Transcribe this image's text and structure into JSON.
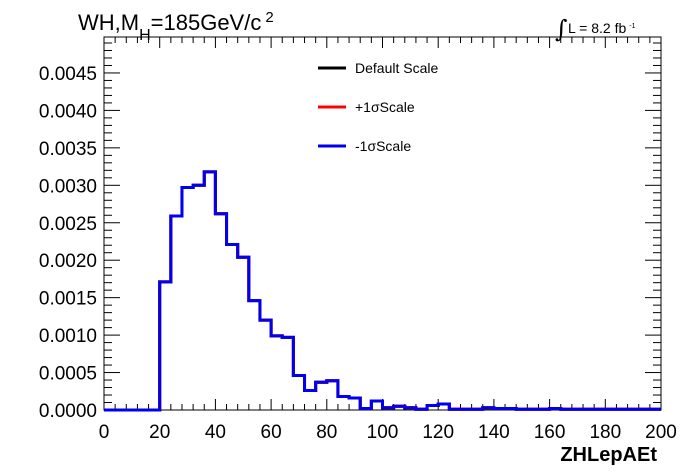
{
  "chart_data": {
    "type": "line",
    "style": "step-histogram",
    "title": {
      "main": "WH,M",
      "subscript": "H",
      "rest": "=185GeV/c",
      "superscript": "2"
    },
    "luminosity": {
      "integral_symbol": "∫",
      "text": "L = 8.2 fb",
      "superscript": "-1"
    },
    "xlabel": "ZHLepAEt",
    "ylabel": "",
    "xlim": [
      0,
      200
    ],
    "ylim": [
      0,
      0.00498
    ],
    "x_ticks": [
      "0",
      "20",
      "40",
      "60",
      "80",
      "100",
      "120",
      "140",
      "160",
      "180",
      "200"
    ],
    "y_ticks": [
      "0.0000",
      "0.0005",
      "0.0010",
      "0.0015",
      "0.0020",
      "0.0025",
      "0.0030",
      "0.0035",
      "0.0040",
      "0.0045"
    ],
    "y_tick_values": [
      0,
      0.0005,
      0.001,
      0.0015,
      0.002,
      0.0025,
      0.003,
      0.0035,
      0.004,
      0.0045
    ],
    "grid": false,
    "legend_position": "top-center",
    "bin_width": 4,
    "bin_edges_start": 0,
    "series": [
      {
        "name": "Default Scale",
        "color": "#000000",
        "values": [
          0,
          0,
          0,
          0,
          0,
          0.00171,
          0.00259,
          0.00297,
          0.003,
          0.00318,
          0.00262,
          0.00221,
          0.00204,
          0.00146,
          0.0012,
          0.00099,
          0.00097,
          0.00046,
          0.00026,
          0.00037,
          0.00039,
          0.00018,
          0.00016,
          2e-05,
          0.00012,
          3e-05,
          5e-05,
          3e-05,
          1e-05,
          6e-05,
          8e-05,
          1e-05,
          1e-05,
          1e-05,
          3e-05,
          2e-05,
          2e-05,
          1e-05,
          1e-05,
          1e-05,
          2e-05,
          1e-05,
          1e-05,
          1e-05,
          1e-05,
          1e-05,
          1e-05,
          1e-05,
          1e-05,
          1e-05
        ]
      },
      {
        "name": "+1σScale",
        "color": "#ff0000",
        "values": [
          0,
          0,
          0,
          0,
          0,
          0.00171,
          0.00259,
          0.00297,
          0.003,
          0.00318,
          0.00262,
          0.00221,
          0.00204,
          0.00146,
          0.0012,
          0.00099,
          0.00097,
          0.00046,
          0.00026,
          0.00037,
          0.00039,
          0.00018,
          0.00016,
          2e-05,
          0.00012,
          3e-05,
          5e-05,
          3e-05,
          1e-05,
          6e-05,
          8e-05,
          1e-05,
          1e-05,
          1e-05,
          3e-05,
          2e-05,
          2e-05,
          1e-05,
          1e-05,
          1e-05,
          2e-05,
          1e-05,
          1e-05,
          1e-05,
          1e-05,
          1e-05,
          1e-05,
          1e-05,
          1e-05,
          1e-05
        ]
      },
      {
        "name": "-1σScale",
        "color": "#0000ee",
        "values": [
          0,
          0,
          0,
          0,
          0,
          0.00171,
          0.00259,
          0.00297,
          0.003,
          0.00318,
          0.00262,
          0.00221,
          0.00204,
          0.00146,
          0.0012,
          0.00099,
          0.00097,
          0.00046,
          0.00026,
          0.00037,
          0.00039,
          0.00018,
          0.00016,
          2e-05,
          0.00012,
          3e-05,
          5e-05,
          3e-05,
          1e-05,
          6e-05,
          8e-05,
          1e-05,
          1e-05,
          1e-05,
          3e-05,
          2e-05,
          2e-05,
          1e-05,
          1e-05,
          1e-05,
          2e-05,
          1e-05,
          1e-05,
          1e-05,
          1e-05,
          1e-05,
          1e-05,
          1e-05,
          1e-05,
          1e-05
        ]
      }
    ]
  }
}
